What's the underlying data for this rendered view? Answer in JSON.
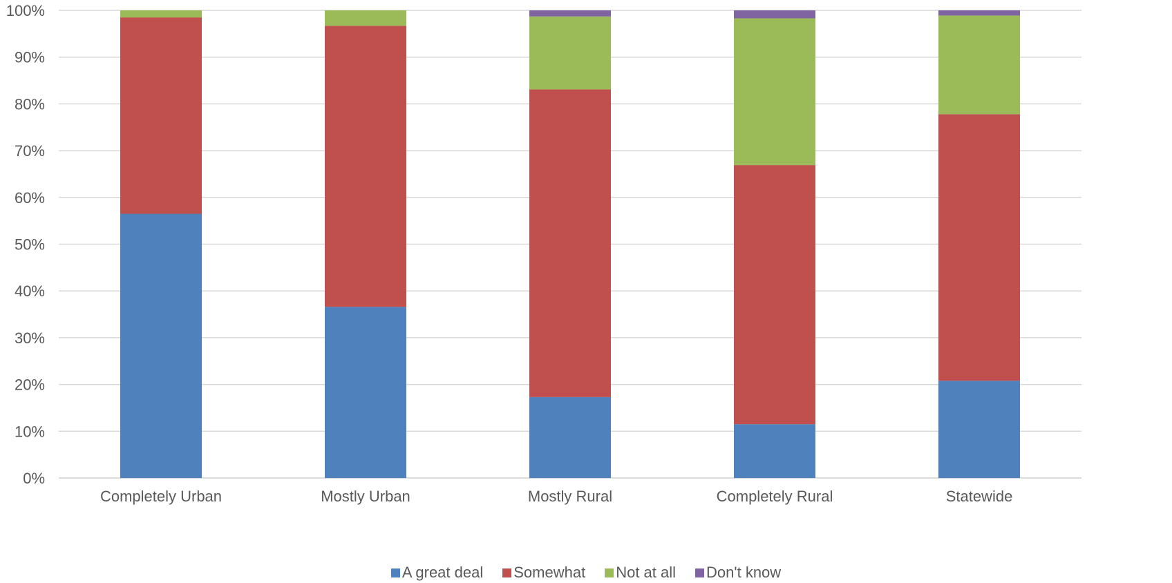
{
  "chart_data": {
    "type": "bar",
    "stacked": true,
    "percent_stacked": true,
    "categories": [
      "Completely Urban",
      "Mostly Urban",
      "Mostly Rural",
      "Completely Rural",
      "Statewide"
    ],
    "series": [
      {
        "name": "A great deal",
        "color": "#4F81BD",
        "values": [
          56.5,
          36.6,
          17.3,
          11.5,
          20.8
        ]
      },
      {
        "name": "Somewhat",
        "color": "#C0504D",
        "values": [
          42.0,
          60.1,
          65.8,
          55.4,
          57.0
        ]
      },
      {
        "name": "Not at all",
        "color": "#9BBB59",
        "values": [
          1.5,
          3.3,
          15.6,
          31.4,
          21.1
        ]
      },
      {
        "name": "Don't know",
        "color": "#8064A2",
        "values": [
          0.0,
          0.0,
          1.3,
          1.7,
          1.1
        ]
      }
    ],
    "y_ticks": [
      "0%",
      "10%",
      "20%",
      "30%",
      "40%",
      "50%",
      "60%",
      "70%",
      "80%",
      "90%",
      "100%"
    ],
    "ylim": [
      0,
      100
    ],
    "grid": true,
    "legend_position": "bottom"
  }
}
